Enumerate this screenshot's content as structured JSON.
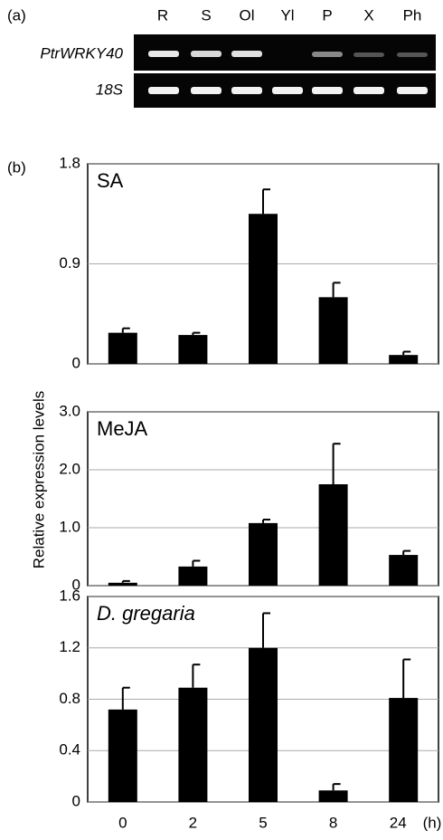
{
  "figure": {
    "panel_a": "(a)",
    "panel_b": "(b)",
    "y_label": "Relative expression levels",
    "x_unit": "(h)"
  },
  "gel": {
    "lanes": [
      "R",
      "S",
      "Ol",
      "Yl",
      "P",
      "X",
      "Ph"
    ],
    "genes": [
      "PtrWRKY40",
      "18S"
    ]
  },
  "chart_data": [
    {
      "type": "bar",
      "title": "SA",
      "categories": [
        "0",
        "2",
        "5",
        "8",
        "24"
      ],
      "values": [
        0.28,
        0.26,
        1.35,
        0.6,
        0.08
      ],
      "errors": [
        0.04,
        0.02,
        0.22,
        0.13,
        0.03
      ],
      "color": "#000000",
      "ylim": [
        0,
        1.8
      ],
      "yticks": [
        0,
        0.9,
        1.8
      ],
      "grid": true
    },
    {
      "type": "bar",
      "title": "MeJA",
      "categories": [
        "0",
        "2",
        "5",
        "8",
        "24"
      ],
      "values": [
        0.05,
        0.33,
        1.08,
        1.75,
        0.53
      ],
      "errors": [
        0.03,
        0.1,
        0.06,
        0.7,
        0.07
      ],
      "color": "#000000",
      "ylim": [
        0,
        3.0
      ],
      "yticks": [
        0,
        {
          "value": 1.0,
          "label": "1.0"
        },
        {
          "value": 2.0,
          "label": "2.0"
        },
        {
          "value": 3.0,
          "label": "3.0"
        }
      ],
      "grid": true
    },
    {
      "type": "bar",
      "title": "D. gregaria",
      "categories": [
        "0",
        "2",
        "5",
        "8",
        "24"
      ],
      "values": [
        0.72,
        0.89,
        1.2,
        0.09,
        0.81
      ],
      "errors": [
        0.17,
        0.18,
        0.27,
        0.05,
        0.3
      ],
      "color": "#000000",
      "ylim": [
        0,
        1.6
      ],
      "yticks": [
        0,
        0.4,
        0.8,
        1.2,
        1.6
      ],
      "grid": true
    }
  ]
}
